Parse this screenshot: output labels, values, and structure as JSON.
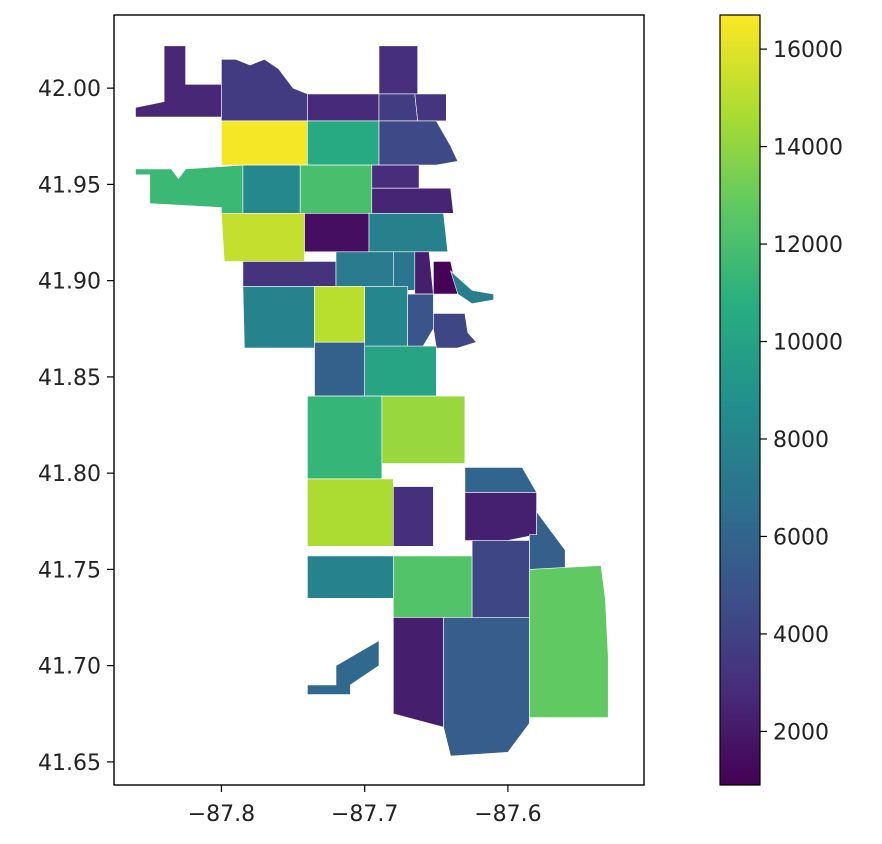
{
  "chart_data": {
    "type": "choropleth",
    "title": "",
    "xlabel": "",
    "ylabel": "",
    "xlim": [
      -87.875,
      -87.505
    ],
    "ylim": [
      41.638,
      42.038
    ],
    "x_ticks": [
      {
        "value": -87.8,
        "label": "−87.8"
      },
      {
        "value": -87.7,
        "label": "−87.7"
      },
      {
        "value": -87.6,
        "label": "−87.6"
      }
    ],
    "y_ticks": [
      {
        "value": 41.65,
        "label": "41.65"
      },
      {
        "value": 41.7,
        "label": "41.70"
      },
      {
        "value": 41.75,
        "label": "41.75"
      },
      {
        "value": 41.8,
        "label": "41.80"
      },
      {
        "value": 41.85,
        "label": "41.85"
      },
      {
        "value": 41.9,
        "label": "41.90"
      },
      {
        "value": 41.95,
        "label": "41.95"
      },
      {
        "value": 42.0,
        "label": "42.00"
      }
    ],
    "colorbar": {
      "colormap": "viridis",
      "vmin": 900,
      "vmax": 16700,
      "ticks": [
        2000,
        4000,
        6000,
        8000,
        10000,
        12000,
        14000,
        16000
      ],
      "tick_labels": [
        "2000",
        "4000",
        "6000",
        "8000",
        "10000",
        "12000",
        "14000",
        "16000"
      ]
    },
    "regions": [
      {
        "value": 2600,
        "poly": [
          [
            -87.84,
            42.022
          ],
          [
            -87.825,
            42.022
          ],
          [
            -87.825,
            42.002
          ],
          [
            -87.8,
            42.002
          ],
          [
            -87.8,
            41.985
          ],
          [
            -87.86,
            41.985
          ],
          [
            -87.86,
            41.99
          ],
          [
            -87.84,
            41.993
          ]
        ]
      },
      {
        "value": 3600,
        "poly": [
          [
            -87.8,
            42.002
          ],
          [
            -87.8,
            42.015
          ],
          [
            -87.79,
            42.015
          ],
          [
            -87.78,
            42.012
          ],
          [
            -87.77,
            42.015
          ],
          [
            -87.76,
            42.01
          ],
          [
            -87.75,
            42.0
          ],
          [
            -87.74,
            41.997
          ],
          [
            -87.74,
            41.983
          ],
          [
            -87.8,
            41.983
          ]
        ]
      },
      {
        "value": 2800,
        "poly": [
          [
            -87.74,
            41.997
          ],
          [
            -87.69,
            41.997
          ],
          [
            -87.69,
            41.983
          ],
          [
            -87.74,
            41.983
          ]
        ]
      },
      {
        "value": 3000,
        "poly": [
          [
            -87.69,
            42.022
          ],
          [
            -87.663,
            42.022
          ],
          [
            -87.663,
            41.997
          ],
          [
            -87.69,
            41.997
          ]
        ]
      },
      {
        "value": 3700,
        "poly": [
          [
            -87.69,
            41.997
          ],
          [
            -87.665,
            41.997
          ],
          [
            -87.663,
            41.983
          ],
          [
            -87.69,
            41.983
          ]
        ]
      },
      {
        "value": 3300,
        "poly": [
          [
            -87.665,
            41.997
          ],
          [
            -87.643,
            41.997
          ],
          [
            -87.643,
            41.983
          ],
          [
            -87.663,
            41.983
          ]
        ]
      },
      {
        "value": 16500,
        "poly": [
          [
            -87.8,
            41.983
          ],
          [
            -87.74,
            41.983
          ],
          [
            -87.74,
            41.96
          ],
          [
            -87.8,
            41.96
          ]
        ]
      },
      {
        "value": 10500,
        "poly": [
          [
            -87.74,
            41.983
          ],
          [
            -87.69,
            41.983
          ],
          [
            -87.69,
            41.96
          ],
          [
            -87.74,
            41.96
          ]
        ]
      },
      {
        "value": 4400,
        "poly": [
          [
            -87.69,
            41.983
          ],
          [
            -87.65,
            41.983
          ],
          [
            -87.64,
            41.97
          ],
          [
            -87.635,
            41.962
          ],
          [
            -87.65,
            41.96
          ],
          [
            -87.69,
            41.96
          ]
        ]
      },
      {
        "value": 11500,
        "poly": [
          [
            -87.825,
            41.958
          ],
          [
            -87.785,
            41.96
          ],
          [
            -87.785,
            41.935
          ],
          [
            -87.8,
            41.935
          ],
          [
            -87.8,
            41.938
          ],
          [
            -87.85,
            41.94
          ],
          [
            -87.85,
            41.955
          ],
          [
            -87.86,
            41.955
          ],
          [
            -87.86,
            41.958
          ],
          [
            -87.835,
            41.958
          ],
          [
            -87.83,
            41.953
          ]
        ]
      },
      {
        "value": 8200,
        "poly": [
          [
            -87.785,
            41.96
          ],
          [
            -87.745,
            41.96
          ],
          [
            -87.745,
            41.935
          ],
          [
            -87.785,
            41.935
          ]
        ]
      },
      {
        "value": 12000,
        "poly": [
          [
            -87.745,
            41.96
          ],
          [
            -87.695,
            41.96
          ],
          [
            -87.695,
            41.93
          ],
          [
            -87.745,
            41.93
          ]
        ]
      },
      {
        "value": 2900,
        "poly": [
          [
            -87.695,
            41.96
          ],
          [
            -87.662,
            41.96
          ],
          [
            -87.662,
            41.948
          ],
          [
            -87.695,
            41.948
          ]
        ]
      },
      {
        "value": 2500,
        "poly": [
          [
            -87.695,
            41.948
          ],
          [
            -87.64,
            41.948
          ],
          [
            -87.638,
            41.935
          ],
          [
            -87.695,
            41.935
          ]
        ]
      },
      {
        "value": 15300,
        "poly": [
          [
            -87.8,
            41.935
          ],
          [
            -87.742,
            41.935
          ],
          [
            -87.742,
            41.91
          ],
          [
            -87.798,
            41.91
          ]
        ]
      },
      {
        "value": 1500,
        "poly": [
          [
            -87.742,
            41.935
          ],
          [
            -87.697,
            41.935
          ],
          [
            -87.697,
            41.915
          ],
          [
            -87.742,
            41.915
          ]
        ]
      },
      {
        "value": 7800,
        "poly": [
          [
            -87.697,
            41.935
          ],
          [
            -87.645,
            41.935
          ],
          [
            -87.642,
            41.915
          ],
          [
            -87.697,
            41.915
          ]
        ]
      },
      {
        "value": 3200,
        "poly": [
          [
            -87.785,
            41.91
          ],
          [
            -87.72,
            41.91
          ],
          [
            -87.72,
            41.897
          ],
          [
            -87.785,
            41.897
          ]
        ]
      },
      {
        "value": 7400,
        "poly": [
          [
            -87.72,
            41.915
          ],
          [
            -87.68,
            41.915
          ],
          [
            -87.68,
            41.897
          ],
          [
            -87.72,
            41.897
          ]
        ]
      },
      {
        "value": 7100,
        "poly": [
          [
            -87.68,
            41.915
          ],
          [
            -87.665,
            41.915
          ],
          [
            -87.665,
            41.895
          ],
          [
            -87.68,
            41.895
          ]
        ]
      },
      {
        "value": 2200,
        "poly": [
          [
            -87.665,
            41.915
          ],
          [
            -87.655,
            41.915
          ],
          [
            -87.652,
            41.893
          ],
          [
            -87.665,
            41.893
          ]
        ]
      },
      {
        "value": 1000,
        "poly": [
          [
            -87.652,
            41.91
          ],
          [
            -87.64,
            41.91
          ],
          [
            -87.635,
            41.893
          ],
          [
            -87.652,
            41.893
          ]
        ]
      },
      {
        "value": 7600,
        "poly": [
          [
            -87.64,
            41.905
          ],
          [
            -87.625,
            41.895
          ],
          [
            -87.61,
            41.893
          ],
          [
            -87.61,
            41.89
          ],
          [
            -87.625,
            41.888
          ],
          [
            -87.635,
            41.893
          ]
        ]
      },
      {
        "value": 7900,
        "poly": [
          [
            -87.785,
            41.897
          ],
          [
            -87.735,
            41.897
          ],
          [
            -87.735,
            41.865
          ],
          [
            -87.784,
            41.865
          ]
        ]
      },
      {
        "value": 15000,
        "poly": [
          [
            -87.735,
            41.897
          ],
          [
            -87.7,
            41.897
          ],
          [
            -87.7,
            41.868
          ],
          [
            -87.735,
            41.868
          ]
        ]
      },
      {
        "value": 8100,
        "poly": [
          [
            -87.7,
            41.897
          ],
          [
            -87.67,
            41.897
          ],
          [
            -87.67,
            41.865
          ],
          [
            -87.7,
            41.865
          ]
        ]
      },
      {
        "value": 5100,
        "poly": [
          [
            -87.67,
            41.893
          ],
          [
            -87.652,
            41.893
          ],
          [
            -87.652,
            41.875
          ],
          [
            -87.66,
            41.865
          ],
          [
            -87.67,
            41.865
          ]
        ]
      },
      {
        "value": 4200,
        "poly": [
          [
            -87.652,
            41.883
          ],
          [
            -87.63,
            41.883
          ],
          [
            -87.628,
            41.873
          ],
          [
            -87.622,
            41.868
          ],
          [
            -87.635,
            41.865
          ],
          [
            -87.65,
            41.865
          ],
          [
            -87.652,
            41.875
          ]
        ]
      },
      {
        "value": 5800,
        "poly": [
          [
            -87.735,
            41.868
          ],
          [
            -87.7,
            41.868
          ],
          [
            -87.7,
            41.84
          ],
          [
            -87.735,
            41.84
          ]
        ]
      },
      {
        "value": 10100,
        "poly": [
          [
            -87.7,
            41.866
          ],
          [
            -87.65,
            41.866
          ],
          [
            -87.65,
            41.84
          ],
          [
            -87.7,
            41.84
          ]
        ]
      },
      {
        "value": 11300,
        "poly": [
          [
            -87.74,
            41.84
          ],
          [
            -87.688,
            41.84
          ],
          [
            -87.688,
            41.797
          ],
          [
            -87.74,
            41.797
          ]
        ]
      },
      {
        "value": 14200,
        "poly": [
          [
            -87.688,
            41.84
          ],
          [
            -87.63,
            41.84
          ],
          [
            -87.63,
            41.805
          ],
          [
            -87.688,
            41.805
          ]
        ]
      },
      {
        "value": 6000,
        "poly": [
          [
            -87.63,
            41.803
          ],
          [
            -87.59,
            41.803
          ],
          [
            -87.58,
            41.79
          ],
          [
            -87.63,
            41.79
          ]
        ]
      },
      {
        "value": 14700,
        "poly": [
          [
            -87.74,
            41.797
          ],
          [
            -87.68,
            41.797
          ],
          [
            -87.68,
            41.762
          ],
          [
            -87.74,
            41.762
          ]
        ]
      },
      {
        "value": 3000,
        "poly": [
          [
            -87.68,
            41.793
          ],
          [
            -87.652,
            41.793
          ],
          [
            -87.652,
            41.762
          ],
          [
            -87.68,
            41.762
          ]
        ]
      },
      {
        "value": 2300,
        "poly": [
          [
            -87.63,
            41.79
          ],
          [
            -87.58,
            41.79
          ],
          [
            -87.58,
            41.768
          ],
          [
            -87.6,
            41.765
          ],
          [
            -87.63,
            41.765
          ]
        ]
      },
      {
        "value": 5700,
        "poly": [
          [
            -87.58,
            41.78
          ],
          [
            -87.57,
            41.77
          ],
          [
            -87.56,
            41.76
          ],
          [
            -87.56,
            41.75
          ],
          [
            -87.585,
            41.75
          ],
          [
            -87.585,
            41.768
          ],
          [
            -87.58,
            41.768
          ]
        ]
      },
      {
        "value": 7900,
        "poly": [
          [
            -87.74,
            41.757
          ],
          [
            -87.68,
            41.757
          ],
          [
            -87.68,
            41.735
          ],
          [
            -87.74,
            41.735
          ]
        ]
      },
      {
        "value": 12300,
        "poly": [
          [
            -87.68,
            41.757
          ],
          [
            -87.625,
            41.757
          ],
          [
            -87.625,
            41.725
          ],
          [
            -87.68,
            41.725
          ]
        ]
      },
      {
        "value": 4200,
        "poly": [
          [
            -87.625,
            41.765
          ],
          [
            -87.585,
            41.765
          ],
          [
            -87.585,
            41.725
          ],
          [
            -87.625,
            41.725
          ]
        ]
      },
      {
        "value": 12800,
        "poly": [
          [
            -87.585,
            41.75
          ],
          [
            -87.535,
            41.752
          ],
          [
            -87.532,
            41.735
          ],
          [
            -87.53,
            41.705
          ],
          [
            -87.53,
            41.673
          ],
          [
            -87.585,
            41.673
          ]
        ]
      },
      {
        "value": 6200,
        "poly": [
          [
            -87.69,
            41.713
          ],
          [
            -87.69,
            41.7
          ],
          [
            -87.71,
            41.69
          ],
          [
            -87.71,
            41.685
          ],
          [
            -87.74,
            41.685
          ],
          [
            -87.74,
            41.69
          ],
          [
            -87.72,
            41.69
          ],
          [
            -87.72,
            41.7
          ]
        ]
      },
      {
        "value": 2200,
        "poly": [
          [
            -87.68,
            41.725
          ],
          [
            -87.645,
            41.725
          ],
          [
            -87.645,
            41.668
          ],
          [
            -87.68,
            41.675
          ]
        ]
      },
      {
        "value": 5500,
        "poly": [
          [
            -87.645,
            41.725
          ],
          [
            -87.585,
            41.725
          ],
          [
            -87.585,
            41.67
          ],
          [
            -87.6,
            41.655
          ],
          [
            -87.64,
            41.653
          ],
          [
            -87.645,
            41.668
          ]
        ]
      }
    ]
  }
}
